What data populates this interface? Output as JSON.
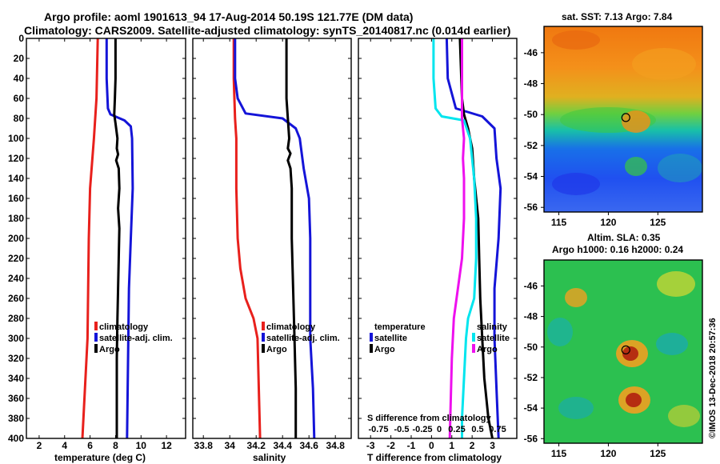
{
  "title_line1": "Argo profile: aoml 1901613_94 17-Aug-2014 50.19S 121.77E (DM data)",
  "title_line2": "Climatology: CARS2009. Satellite-adjusted climatology: synTS_20140817.nc (0.014d earlier)",
  "depth_axis": {
    "min": 0,
    "max": 400,
    "ticks": [
      0,
      20,
      40,
      60,
      80,
      100,
      120,
      140,
      160,
      180,
      200,
      220,
      240,
      260,
      280,
      300,
      320,
      340,
      360,
      380,
      400
    ]
  },
  "colors": {
    "climatology": "#e8201c",
    "satellite": "#1414d8",
    "argo": "#000000",
    "s_sat": "#00e5ee",
    "s_argo": "#ee10ee"
  },
  "chart_data": [
    {
      "type": "line",
      "id": "temperature",
      "xlabel": "temperature (deg C)",
      "xlim": [
        1,
        13.5
      ],
      "xticks": [
        2,
        4,
        6,
        8,
        10,
        12
      ],
      "xtick_labels": [
        "2",
        "4",
        "6",
        "8",
        "10",
        "12"
      ],
      "legend": [
        "climatology",
        "satellite-adj. clim.",
        "Argo"
      ],
      "series": [
        {
          "name": "climatology",
          "color_key": "climatology",
          "points": [
            [
              6.6,
              0
            ],
            [
              6.5,
              60
            ],
            [
              6.3,
              100
            ],
            [
              6.0,
              150
            ],
            [
              5.9,
              200
            ],
            [
              5.85,
              250
            ],
            [
              5.8,
              300
            ],
            [
              5.6,
              350
            ],
            [
              5.4,
              400
            ]
          ]
        },
        {
          "name": "satellite-adj. clim.",
          "color_key": "satellite",
          "points": [
            [
              7.3,
              0
            ],
            [
              7.3,
              40
            ],
            [
              7.4,
              70
            ],
            [
              7.6,
              76
            ],
            [
              8.7,
              82
            ],
            [
              9.2,
              88
            ],
            [
              9.3,
              100
            ],
            [
              9.35,
              150
            ],
            [
              9.2,
              200
            ],
            [
              9.05,
              250
            ],
            [
              9.0,
              300
            ],
            [
              8.95,
              350
            ],
            [
              8.9,
              400
            ]
          ]
        },
        {
          "name": "Argo",
          "color_key": "argo",
          "points": [
            [
              8.0,
              0
            ],
            [
              8.0,
              40
            ],
            [
              7.95,
              60
            ],
            [
              7.9,
              76
            ],
            [
              8.0,
              85
            ],
            [
              8.15,
              100
            ],
            [
              8.1,
              110
            ],
            [
              8.2,
              116
            ],
            [
              8.05,
              122
            ],
            [
              8.25,
              130
            ],
            [
              8.3,
              150
            ],
            [
              8.2,
              170
            ],
            [
              8.3,
              190
            ],
            [
              8.25,
              220
            ],
            [
              8.2,
              250
            ],
            [
              8.15,
              280
            ],
            [
              8.1,
              320
            ],
            [
              8.1,
              360
            ],
            [
              8.1,
              400
            ]
          ]
        }
      ]
    },
    {
      "type": "line",
      "id": "salinity",
      "xlabel": "salinity",
      "xlim": [
        33.72,
        34.92
      ],
      "xticks": [
        33.8,
        34,
        34.2,
        34.4,
        34.6,
        34.8
      ],
      "xtick_labels": [
        "33.8",
        "34",
        "34.2",
        "34.4",
        "34.6",
        "34.8"
      ],
      "legend": [
        "climatology",
        "satellite-adj. clim.",
        "Argo"
      ],
      "series": [
        {
          "name": "climatology",
          "color_key": "climatology",
          "points": [
            [
              34.03,
              0
            ],
            [
              34.03,
              40
            ],
            [
              34.04,
              80
            ],
            [
              34.05,
              100
            ],
            [
              34.05,
              150
            ],
            [
              34.06,
              200
            ],
            [
              34.08,
              230
            ],
            [
              34.12,
              260
            ],
            [
              34.18,
              280
            ],
            [
              34.21,
              300
            ],
            [
              34.22,
              350
            ],
            [
              34.23,
              400
            ]
          ]
        },
        {
          "name": "satellite-adj. clim.",
          "color_key": "satellite",
          "points": [
            [
              34.04,
              0
            ],
            [
              34.04,
              40
            ],
            [
              34.06,
              60
            ],
            [
              34.12,
              75
            ],
            [
              34.4,
              80
            ],
            [
              34.5,
              90
            ],
            [
              34.53,
              100
            ],
            [
              34.56,
              130
            ],
            [
              34.6,
              160
            ],
            [
              34.61,
              200
            ],
            [
              34.61,
              300
            ],
            [
              34.63,
              350
            ],
            [
              34.64,
              400
            ]
          ]
        },
        {
          "name": "Argo",
          "color_key": "argo",
          "points": [
            [
              34.43,
              0
            ],
            [
              34.43,
              60
            ],
            [
              34.44,
              80
            ],
            [
              34.45,
              100
            ],
            [
              34.44,
              110
            ],
            [
              34.46,
              115
            ],
            [
              34.44,
              122
            ],
            [
              34.46,
              130
            ],
            [
              34.47,
              150
            ],
            [
              34.47,
              200
            ],
            [
              34.48,
              250
            ],
            [
              34.49,
              300
            ],
            [
              34.5,
              350
            ],
            [
              34.5,
              400
            ]
          ]
        }
      ]
    },
    {
      "type": "line",
      "id": "difference",
      "xlabel": "T difference from climatology",
      "xlim": [
        -3.6,
        4.2
      ],
      "xticks": [
        -3,
        -2,
        -1,
        0,
        1,
        2,
        3
      ],
      "xtick_labels": [
        "-3",
        "-2",
        "-1",
        "0",
        "1",
        "2",
        "3"
      ],
      "s_axis_title": "S difference from climatology",
      "s_tick_labels": [
        "-0.75",
        "-0.5",
        "-0.25",
        "0",
        "0.25",
        "0.5",
        "0.75"
      ],
      "legend_left": {
        "title": "temperature",
        "items": [
          "satellite",
          "Argo"
        ]
      },
      "legend_right": {
        "title": "salinity",
        "items": [
          "satellite",
          "Argo"
        ]
      },
      "series": [
        {
          "name": "T satellite",
          "color_key": "satellite",
          "points": [
            [
              0.75,
              0
            ],
            [
              0.8,
              40
            ],
            [
              1.2,
              70
            ],
            [
              2.5,
              78
            ],
            [
              3.1,
              90
            ],
            [
              3.2,
              120
            ],
            [
              3.4,
              150
            ],
            [
              3.3,
              200
            ],
            [
              3.1,
              250
            ],
            [
              3.1,
              300
            ],
            [
              3.2,
              350
            ],
            [
              3.3,
              400
            ]
          ]
        },
        {
          "name": "T Argo",
          "color_key": "argo",
          "points": [
            [
              1.4,
              0
            ],
            [
              1.5,
              60
            ],
            [
              1.6,
              76
            ],
            [
              1.8,
              90
            ],
            [
              2.0,
              110
            ],
            [
              2.1,
              140
            ],
            [
              2.3,
              180
            ],
            [
              2.35,
              220
            ],
            [
              2.4,
              260
            ],
            [
              2.5,
              300
            ],
            [
              2.6,
              340
            ],
            [
              2.8,
              380
            ],
            [
              3.0,
              400
            ]
          ]
        },
        {
          "name": "S satellite",
          "color_key": "s_sat",
          "points": [
            [
              0.1,
              0
            ],
            [
              0.1,
              40
            ],
            [
              0.2,
              70
            ],
            [
              0.5,
              78
            ],
            [
              1.6,
              82
            ],
            [
              1.9,
              100
            ],
            [
              2.1,
              140
            ],
            [
              2.2,
              180
            ],
            [
              2.2,
              220
            ],
            [
              2.1,
              260
            ],
            [
              1.8,
              280
            ],
            [
              1.7,
              300
            ],
            [
              1.6,
              340
            ],
            [
              1.5,
              380
            ],
            [
              1.5,
              400
            ]
          ]
        },
        {
          "name": "S Argo",
          "color_key": "s_argo",
          "points": [
            [
              1.5,
              0
            ],
            [
              1.5,
              60
            ],
            [
              1.5,
              80
            ],
            [
              1.6,
              100
            ],
            [
              1.55,
              120
            ],
            [
              1.6,
              140
            ],
            [
              1.6,
              180
            ],
            [
              1.5,
              220
            ],
            [
              1.3,
              250
            ],
            [
              1.1,
              280
            ],
            [
              1.0,
              320
            ],
            [
              0.95,
              360
            ],
            [
              0.9,
              400
            ]
          ]
        }
      ]
    },
    {
      "type": "heatmap",
      "id": "sst_map",
      "title": "sat. SST: 7.13 Argo: 7.84",
      "xticks": [
        115,
        120,
        125
      ],
      "yticks": [
        -46,
        -48,
        -50,
        -52,
        -54,
        -56
      ],
      "xlim": [
        113.5,
        129.5
      ],
      "ylim": [
        -56.3,
        -44.3
      ],
      "marker": {
        "lon": 121.77,
        "lat": -50.19
      }
    },
    {
      "type": "heatmap",
      "id": "sla_map",
      "title": "Altim. SLA: 0.35",
      "subtitle": "Argo h1000: 0.16 h2000: 0.24",
      "xticks": [
        115,
        120,
        125
      ],
      "yticks": [
        -46,
        -48,
        -50,
        -52,
        -54,
        -56
      ],
      "xlim": [
        113.5,
        129.5
      ],
      "ylim": [
        -56.3,
        -44.3
      ],
      "marker": {
        "lon": 121.77,
        "lat": -50.19
      }
    }
  ],
  "credit": "©IMOS 13-Dec-2018 20:57:36"
}
